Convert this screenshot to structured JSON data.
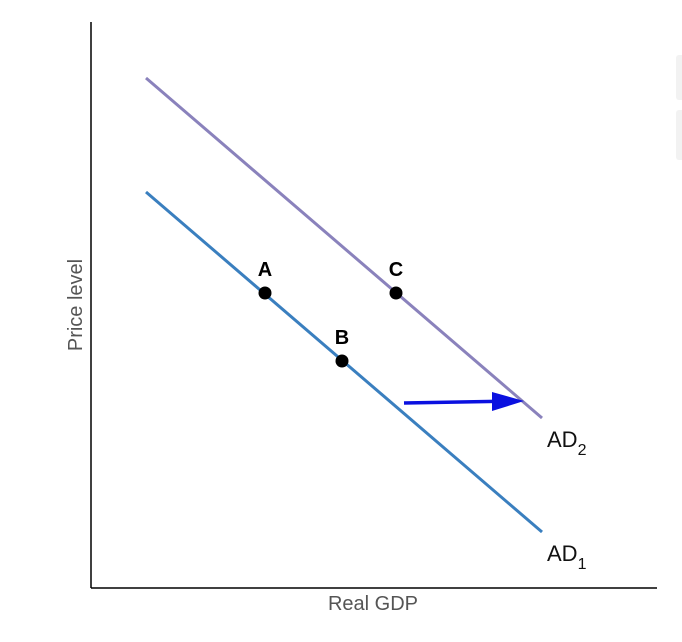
{
  "axes": {
    "x_label": "Real GDP",
    "y_label": "Price level"
  },
  "curves": [
    {
      "id": "ad1",
      "label": "AD",
      "subscript": "1",
      "color": "#3a7fbf"
    },
    {
      "id": "ad2",
      "label": "AD",
      "subscript": "2",
      "color": "#8a82bc"
    }
  ],
  "points": [
    {
      "label": "A"
    },
    {
      "label": "B"
    },
    {
      "label": "C"
    }
  ],
  "shift_arrow": {
    "color": "#0a10e0",
    "direction": "right"
  },
  "colors": {
    "axis": "#000000",
    "point": "#000000"
  }
}
